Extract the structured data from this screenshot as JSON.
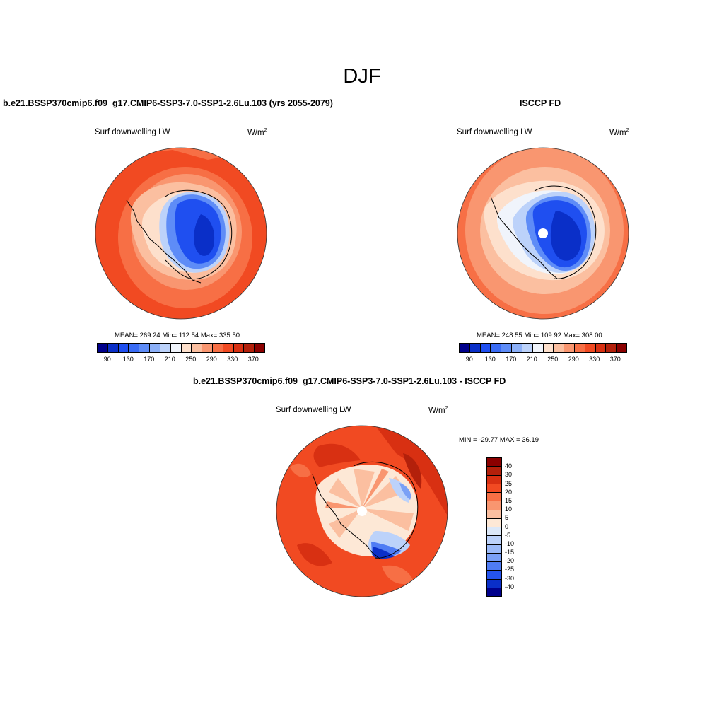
{
  "season": "DJF",
  "panels": [
    {
      "title": "b.e21.BSSP370cmip6.f09_g17.CMIP6-SSP3-7.0-SSP1-2.6Lu.103 (yrs 2055-2079)",
      "left_label": "Surf downwelling LW",
      "units": "W/m",
      "units_sup": "2",
      "stats": "MEAN= 269.24  Min= 112.54  Max= 335.50",
      "colorbar": {
        "colors": [
          "#00008b",
          "#0a2fc8",
          "#1f4ff0",
          "#3a6cf5",
          "#5e8cf7",
          "#8cb0f8",
          "#bcd2fa",
          "#f0f4fb",
          "#fde0cc",
          "#fbbfa0",
          "#f99670",
          "#f76f45",
          "#f14a22",
          "#d83012",
          "#b3200b",
          "#8b0000"
        ],
        "tick_labels": [
          "90",
          "130",
          "170",
          "210",
          "250",
          "290",
          "330",
          "370"
        ]
      }
    },
    {
      "title": "ISCCP FD",
      "left_label": "Surf downwelling LW",
      "units": "W/m",
      "units_sup": "2",
      "stats": "MEAN= 248.55  Min= 109.92  Max= 308.00",
      "colorbar": {
        "colors": [
          "#00008b",
          "#0a2fc8",
          "#1f4ff0",
          "#3a6cf5",
          "#5e8cf7",
          "#8cb0f8",
          "#bcd2fa",
          "#f0f4fb",
          "#fde0cc",
          "#fbbfa0",
          "#f99670",
          "#f76f45",
          "#f14a22",
          "#d83012",
          "#b3200b",
          "#8b0000"
        ],
        "tick_labels": [
          "90",
          "130",
          "170",
          "210",
          "250",
          "290",
          "330",
          "370"
        ]
      }
    },
    {
      "title": "b.e21.BSSP370cmip6.f09_g17.CMIP6-SSP3-7.0-SSP1-2.6Lu.103 - ISCCP FD",
      "left_label": "Surf downwelling LW",
      "units": "W/m",
      "units_sup": "2",
      "stats": "MIN = -29.77 MAX =  36.19",
      "colorbar": {
        "colors": [
          "#8b0000",
          "#b3200b",
          "#d83012",
          "#f14a22",
          "#f76f45",
          "#f99670",
          "#fbbfa0",
          "#fde8d6",
          "#dce8f8",
          "#bcd2fa",
          "#9bbaf8",
          "#7aa0f6",
          "#4f7cf4",
          "#2554ee",
          "#0a2fc8",
          "#00008b"
        ],
        "tick_labels": [
          "40",
          "30",
          "25",
          "20",
          "15",
          "10",
          "5",
          "0",
          "-5",
          "-10",
          "-15",
          "-20",
          "-25",
          "-30",
          "-40"
        ]
      }
    }
  ]
}
